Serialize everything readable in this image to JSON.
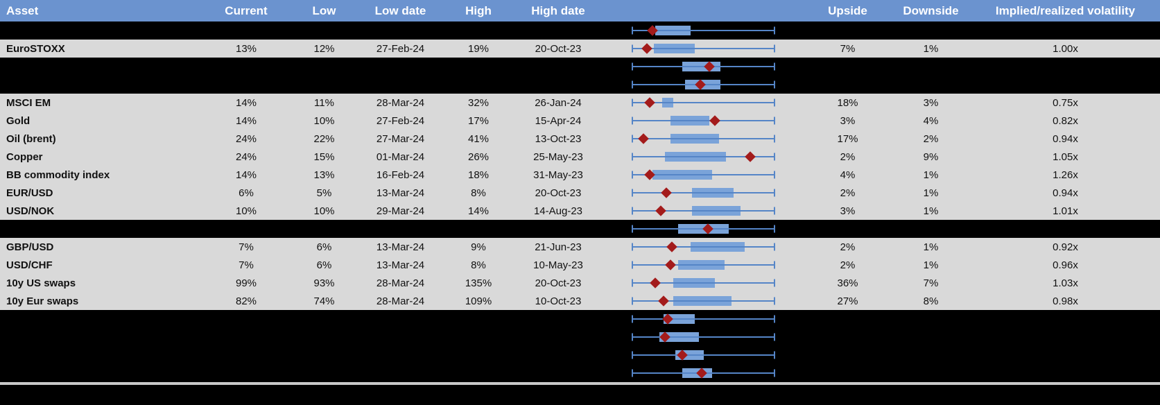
{
  "colors": {
    "header_bg": "#6b93cf",
    "header_text": "#ffffff",
    "row_bg": "#d9d9d9",
    "band_bg": "#000000",
    "box_fill": "#7aa3d9",
    "whisker": "#5585c7",
    "marker": "#a31b1b",
    "divider": "#c9c9c9"
  },
  "header": {
    "columns": [
      "Asset",
      "Current",
      "Low",
      "Low date",
      "High",
      "High date",
      "Upside",
      "Downside",
      "Implied/realized volatility"
    ]
  },
  "chart_data": {
    "type": "table",
    "note": "Each row carries an inline box-and-whisker plot; whiskers span the asset's low-high volatility range. box_left/box_right/marker are fractions 0-1 of that span; marker is the red diamond (current level). Rows with kind 'boxplot-only' are black band rows showing only a plot.",
    "rows": [
      {
        "kind": "boxplot-only",
        "box_left": 0.16,
        "box_right": 0.41,
        "marker": 0.14
      },
      {
        "kind": "data",
        "asset": "EuroSTOXX",
        "current": "13%",
        "low": "12%",
        "low_date": "27-Feb-24",
        "high": "19%",
        "high_date": "20-Oct-23",
        "upside": "7%",
        "downside": "1%",
        "irv": "1.00x",
        "box_left": 0.15,
        "box_right": 0.44,
        "marker": 0.1
      },
      {
        "kind": "boxplot-only",
        "box_left": 0.35,
        "box_right": 0.62,
        "marker": 0.54
      },
      {
        "kind": "boxplot-only",
        "box_left": 0.37,
        "box_right": 0.62,
        "marker": 0.48
      },
      {
        "kind": "data",
        "asset": "MSCI EM",
        "current": "14%",
        "low": "11%",
        "low_date": "28-Mar-24",
        "high": "32%",
        "high_date": "26-Jan-24",
        "upside": "18%",
        "downside": "3%",
        "irv": "0.75x",
        "box_left": 0.21,
        "box_right": 0.29,
        "marker": 0.12
      },
      {
        "kind": "data",
        "asset": "Gold",
        "current": "14%",
        "low": "10%",
        "low_date": "27-Feb-24",
        "high": "17%",
        "high_date": "15-Apr-24",
        "upside": "3%",
        "downside": "4%",
        "irv": "0.82x",
        "box_left": 0.27,
        "box_right": 0.54,
        "marker": 0.58
      },
      {
        "kind": "data",
        "asset": "Oil (brent)",
        "current": "24%",
        "low": "22%",
        "low_date": "27-Mar-24",
        "high": "41%",
        "high_date": "13-Oct-23",
        "upside": "17%",
        "downside": "2%",
        "irv": "0.94x",
        "box_left": 0.27,
        "box_right": 0.61,
        "marker": 0.08
      },
      {
        "kind": "data",
        "asset": "Copper",
        "current": "24%",
        "low": "15%",
        "low_date": "01-Mar-24",
        "high": "26%",
        "high_date": "25-May-23",
        "upside": "2%",
        "downside": "9%",
        "irv": "1.05x",
        "box_left": 0.23,
        "box_right": 0.66,
        "marker": 0.83
      },
      {
        "kind": "data",
        "asset": "BB commodity index",
        "current": "14%",
        "low": "13%",
        "low_date": "16-Feb-24",
        "high": "18%",
        "high_date": "31-May-23",
        "upside": "4%",
        "downside": "1%",
        "irv": "1.26x",
        "box_left": 0.14,
        "box_right": 0.56,
        "marker": 0.12
      },
      {
        "kind": "data",
        "asset": "EUR/USD",
        "current": "6%",
        "low": "5%",
        "low_date": "13-Mar-24",
        "high": "8%",
        "high_date": "20-Oct-23",
        "upside": "2%",
        "downside": "1%",
        "irv": "0.94x",
        "box_left": 0.42,
        "box_right": 0.71,
        "marker": 0.24
      },
      {
        "kind": "data",
        "asset": "USD/NOK",
        "current": "10%",
        "low": "10%",
        "low_date": "29-Mar-24",
        "high": "14%",
        "high_date": "14-Aug-23",
        "upside": "3%",
        "downside": "1%",
        "irv": "1.01x",
        "box_left": 0.42,
        "box_right": 0.76,
        "marker": 0.2
      },
      {
        "kind": "boxplot-only",
        "box_left": 0.32,
        "box_right": 0.68,
        "marker": 0.53
      },
      {
        "kind": "data",
        "asset": "GBP/USD",
        "current": "7%",
        "low": "6%",
        "low_date": "13-Mar-24",
        "high": "9%",
        "high_date": "21-Jun-23",
        "upside": "2%",
        "downside": "1%",
        "irv": "0.92x",
        "box_left": 0.41,
        "box_right": 0.79,
        "marker": 0.28
      },
      {
        "kind": "data",
        "asset": "USD/CHF",
        "current": "7%",
        "low": "6%",
        "low_date": "13-Mar-24",
        "high": "8%",
        "high_date": "10-May-23",
        "upside": "2%",
        "downside": "1%",
        "irv": "0.96x",
        "box_left": 0.32,
        "box_right": 0.65,
        "marker": 0.27
      },
      {
        "kind": "data",
        "asset": "10y US swaps",
        "current": "99%",
        "low": "93%",
        "low_date": "28-Mar-24",
        "high": "135%",
        "high_date": "20-Oct-23",
        "upside": "36%",
        "downside": "7%",
        "irv": "1.03x",
        "box_left": 0.29,
        "box_right": 0.58,
        "marker": 0.16
      },
      {
        "kind": "data",
        "asset": "10y Eur swaps",
        "current": "82%",
        "low": "74%",
        "low_date": "28-Mar-24",
        "high": "109%",
        "high_date": "10-Oct-23",
        "upside": "27%",
        "downside": "8%",
        "irv": "0.98x",
        "box_left": 0.29,
        "box_right": 0.7,
        "marker": 0.22
      },
      {
        "kind": "boxplot-only",
        "box_left": 0.22,
        "box_right": 0.44,
        "marker": 0.25
      },
      {
        "kind": "boxplot-only",
        "box_left": 0.19,
        "box_right": 0.47,
        "marker": 0.23
      },
      {
        "kind": "boxplot-only",
        "box_left": 0.3,
        "box_right": 0.5,
        "marker": 0.35
      },
      {
        "kind": "boxplot-only",
        "box_left": 0.35,
        "box_right": 0.56,
        "marker": 0.49
      }
    ]
  }
}
